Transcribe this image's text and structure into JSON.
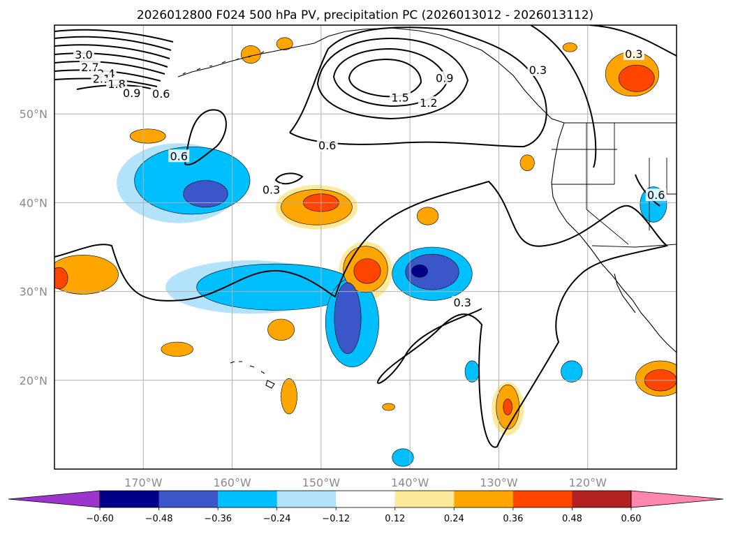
{
  "chart_data": {
    "type": "heatmap",
    "title": "2026012800 F024 500 hPa PV, precipitation PC (2026013012 - 2026013112)",
    "map_extent": {
      "lon": [
        -180,
        -110
      ],
      "lat": [
        10,
        60
      ]
    },
    "grid": true,
    "lat_ticks": [
      {
        "value": 20,
        "label": "20°N"
      },
      {
        "value": 30,
        "label": "30°N"
      },
      {
        "value": 40,
        "label": "40°N"
      },
      {
        "value": 50,
        "label": "50°N"
      }
    ],
    "lon_ticks": [
      {
        "value": -170,
        "label": "170°W"
      },
      {
        "value": -160,
        "label": "160°W"
      },
      {
        "value": -150,
        "label": "150°W"
      },
      {
        "value": -140,
        "label": "140°W"
      },
      {
        "value": -130,
        "label": "130°W"
      },
      {
        "value": -120,
        "label": "120°W"
      }
    ],
    "colorbar": {
      "extend": "both",
      "tick_labels": [
        "−0.60",
        "−0.48",
        "−0.36",
        "−0.24",
        "−0.12",
        "0.12",
        "0.24",
        "0.36",
        "0.48",
        "0.60"
      ],
      "colors": [
        "#9c35cc",
        "#00008b",
        "#3a56c8",
        "#00bfff",
        "#b3e3fb",
        "#ffffff",
        "#fde99a",
        "#ffa500",
        "#ff4500",
        "#b22222",
        "#ff86ac"
      ]
    },
    "pv_contour_labels": [
      {
        "text": "3.0",
        "lon": -176.7,
        "lat": 56.6
      },
      {
        "text": "2.7",
        "lon": -176.0,
        "lat": 55.2
      },
      {
        "text": "2.4",
        "lon": -174.2,
        "lat": 54.5
      },
      {
        "text": "2.1",
        "lon": -174.7,
        "lat": 53.9
      },
      {
        "text": "1.8",
        "lon": -173.0,
        "lat": 53.3
      },
      {
        "text": "0.9",
        "lon": -171.3,
        "lat": 52.3
      },
      {
        "text": "0.6",
        "lon": -168.0,
        "lat": 52.2
      },
      {
        "text": "1.5",
        "lon": -141.1,
        "lat": 51.8
      },
      {
        "text": "1.2",
        "lon": -137.9,
        "lat": 51.2
      },
      {
        "text": "0.9",
        "lon": -136.1,
        "lat": 54.0
      },
      {
        "text": "0.6",
        "lon": -149.3,
        "lat": 46.4
      },
      {
        "text": "0.6",
        "lon": -166.0,
        "lat": 45.2
      },
      {
        "text": "0.3",
        "lon": -155.6,
        "lat": 41.4
      },
      {
        "text": "0.3",
        "lon": -125.6,
        "lat": 54.9
      },
      {
        "text": "0.3",
        "lon": -114.8,
        "lat": 56.7
      },
      {
        "text": "0.6",
        "lon": -112.3,
        "lat": 40.8
      },
      {
        "text": "0.3",
        "lon": -134.1,
        "lat": 28.7
      }
    ],
    "precip_regions": [
      {
        "level": -0.24,
        "lon": -164.5,
        "lat": 42.5,
        "rx": 6.5,
        "ry": 3.8
      },
      {
        "level": -0.36,
        "lon": -163.0,
        "lat": 41.0,
        "rx": 2.5,
        "ry": 1.5
      },
      {
        "level": -0.24,
        "lon": -155.0,
        "lat": 30.5,
        "rx": 9.0,
        "ry": 2.6
      },
      {
        "level": -0.24,
        "lon": -146.5,
        "lat": 26.5,
        "rx": 3.0,
        "ry": 5.0
      },
      {
        "level": -0.36,
        "lon": -147.0,
        "lat": 27.0,
        "rx": 1.5,
        "ry": 4.0
      },
      {
        "level": -0.24,
        "lon": -137.5,
        "lat": 32.0,
        "rx": 4.5,
        "ry": 3.0
      },
      {
        "level": -0.36,
        "lon": -137.5,
        "lat": 32.2,
        "rx": 3.0,
        "ry": 2.0
      },
      {
        "level": -0.48,
        "lon": -138.9,
        "lat": 32.3,
        "rx": 0.9,
        "ry": 0.7
      },
      {
        "level": -0.24,
        "lon": -112.6,
        "lat": 39.8,
        "rx": 1.5,
        "ry": 2.0
      },
      {
        "level": -0.24,
        "lon": -121.8,
        "lat": 21.0,
        "rx": 1.2,
        "ry": 1.2
      },
      {
        "level": -0.24,
        "lon": -133.0,
        "lat": 21.0,
        "rx": 0.8,
        "ry": 1.2
      },
      {
        "level": -0.24,
        "lon": -140.8,
        "lat": 11.3,
        "rx": 1.2,
        "ry": 1.0
      },
      {
        "level": -0.12,
        "lon": -158.0,
        "lat": 30.5,
        "rx": 9.5,
        "ry": 3.0
      },
      {
        "level": -0.12,
        "lon": -166.0,
        "lat": 42.2,
        "rx": 7.0,
        "ry": 4.5
      },
      {
        "level": 0.24,
        "lon": -150.5,
        "lat": 39.5,
        "rx": 4.0,
        "ry": 2.0
      },
      {
        "level": 0.36,
        "lon": -150.0,
        "lat": 40.0,
        "rx": 2.0,
        "ry": 1.0
      },
      {
        "level": 0.24,
        "lon": -145.0,
        "lat": 32.5,
        "rx": 2.5,
        "ry": 2.6
      },
      {
        "level": 0.36,
        "lon": -144.8,
        "lat": 32.3,
        "rx": 1.5,
        "ry": 1.4
      },
      {
        "level": 0.24,
        "lon": -176.8,
        "lat": 31.9,
        "rx": 4.0,
        "ry": 2.2
      },
      {
        "level": 0.36,
        "lon": -179.5,
        "lat": 31.5,
        "rx": 1.0,
        "ry": 1.2
      },
      {
        "level": 0.24,
        "lon": -115.0,
        "lat": 54.5,
        "rx": 3.0,
        "ry": 2.5
      },
      {
        "level": 0.36,
        "lon": -114.5,
        "lat": 54.0,
        "rx": 2.0,
        "ry": 1.5
      },
      {
        "level": 0.24,
        "lon": -111.8,
        "lat": 20.2,
        "rx": 2.8,
        "ry": 2.0
      },
      {
        "level": 0.36,
        "lon": -111.8,
        "lat": 20.0,
        "rx": 1.8,
        "ry": 1.2
      },
      {
        "level": 0.24,
        "lon": -129.0,
        "lat": 17.0,
        "rx": 1.3,
        "ry": 2.5
      },
      {
        "level": 0.36,
        "lon": -129.0,
        "lat": 17.0,
        "rx": 0.5,
        "ry": 0.9
      },
      {
        "level": 0.24,
        "lon": -169.5,
        "lat": 47.5,
        "rx": 2.0,
        "ry": 0.8
      },
      {
        "level": 0.24,
        "lon": -154.5,
        "lat": 25.7,
        "rx": 1.5,
        "ry": 1.2
      },
      {
        "level": 0.24,
        "lon": -166.2,
        "lat": 23.5,
        "rx": 1.8,
        "ry": 0.8
      },
      {
        "level": 0.24,
        "lon": -138.0,
        "lat": 38.5,
        "rx": 1.2,
        "ry": 1.0
      },
      {
        "level": 0.24,
        "lon": -153.6,
        "lat": 18.2,
        "rx": 0.9,
        "ry": 2.0
      },
      {
        "level": 0.24,
        "lon": -157.9,
        "lat": 56.7,
        "rx": 1.1,
        "ry": 1.0
      },
      {
        "level": 0.24,
        "lon": -154.1,
        "lat": 57.9,
        "rx": 0.9,
        "ry": 0.7
      },
      {
        "level": 0.24,
        "lon": -126.8,
        "lat": 44.5,
        "rx": 0.8,
        "ry": 0.9
      },
      {
        "level": 0.24,
        "lon": -122.0,
        "lat": 57.5,
        "rx": 0.8,
        "ry": 0.5
      },
      {
        "level": 0.24,
        "lon": -142.4,
        "lat": 17.0,
        "rx": 0.7,
        "ry": 0.4
      },
      {
        "level": 0.12,
        "lon": -150.5,
        "lat": 39.5,
        "rx": 4.6,
        "ry": 2.5
      },
      {
        "level": 0.12,
        "lon": -145.0,
        "lat": 32.3,
        "rx": 3.0,
        "ry": 3.3
      },
      {
        "level": 0.12,
        "lon": -129.0,
        "lat": 16.8,
        "rx": 1.8,
        "ry": 3.0
      }
    ]
  }
}
